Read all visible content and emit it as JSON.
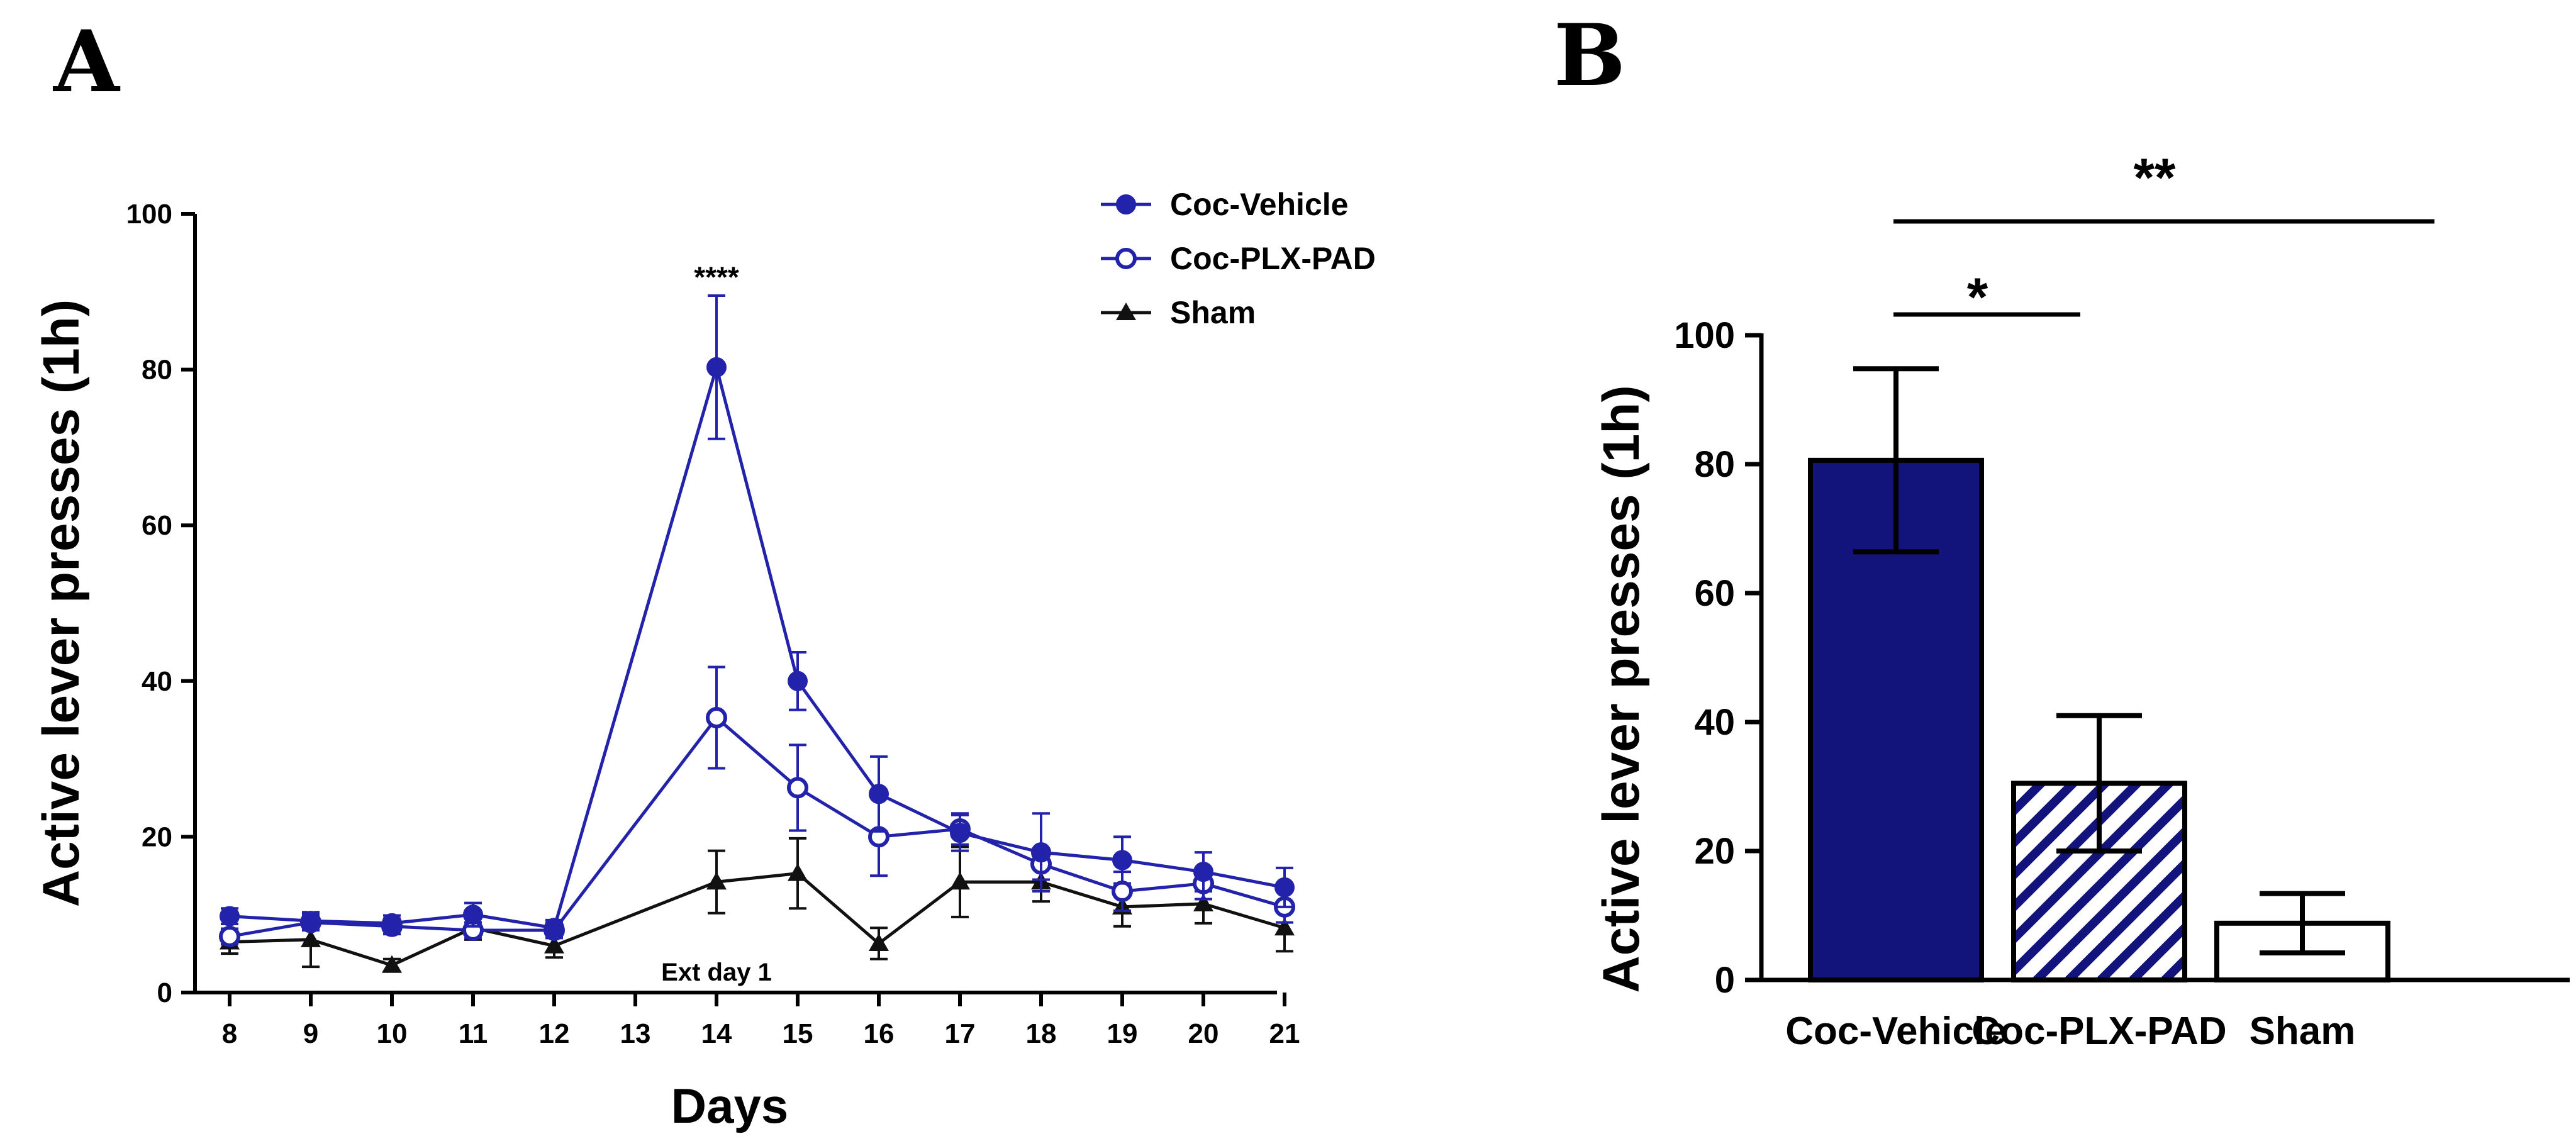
{
  "panels": {
    "a_label": "A",
    "b_label": "B"
  },
  "chart_data": [
    {
      "type": "line",
      "panel": "A",
      "title": "",
      "xlabel": "Days",
      "ylabel": "Active lever presses (1h)",
      "x": [
        8,
        9,
        10,
        11,
        12,
        13,
        14,
        15,
        16,
        17,
        18,
        19,
        20,
        21
      ],
      "x_tick_labels": [
        "8",
        "9",
        "10",
        "11",
        "12",
        "13",
        "14",
        "15",
        "16",
        "17",
        "18",
        "19",
        "20",
        "21"
      ],
      "ylim": [
        0,
        100
      ],
      "y_ticks": [
        0,
        20,
        40,
        60,
        80,
        100
      ],
      "y_tick_labels": [
        "0",
        "20",
        "40",
        "60",
        "80",
        "100"
      ],
      "grid": false,
      "legend": "top-right",
      "series": [
        {
          "name": "Coc-Vehicle",
          "marker": "filled-circle",
          "color": "#2222AA",
          "x": [
            8,
            9,
            10,
            11,
            12,
            14,
            15,
            16,
            17,
            18,
            19,
            20,
            21
          ],
          "y": [
            9.8,
            9.2,
            8.9,
            10.0,
            8.3,
            80.3,
            40.0,
            25.5,
            20.5,
            18.0,
            17.0,
            15.5,
            13.5
          ],
          "err": [
            1.0,
            1.0,
            1.0,
            1.5,
            1.0,
            9.2,
            3.7,
            4.8,
            2.3,
            5.0,
            3.0,
            2.5,
            2.5
          ]
        },
        {
          "name": "Coc-PLX-PAD",
          "marker": "open-circle",
          "color": "#2222AA",
          "x": [
            8,
            9,
            10,
            11,
            12,
            14,
            15,
            16,
            17,
            18,
            19,
            20,
            21
          ],
          "y": [
            7.2,
            9.0,
            8.5,
            8.0,
            8.0,
            35.3,
            26.3,
            20.0,
            21.0,
            16.5,
            13.0,
            14.0,
            11.0
          ],
          "err": [
            1.0,
            1.0,
            1.0,
            1.0,
            1.0,
            6.5,
            5.5,
            5.0,
            2.0,
            2.0,
            2.5,
            2.0,
            2.0
          ]
        },
        {
          "name": "Sham",
          "marker": "filled-triangle",
          "color": "#111111",
          "x": [
            8,
            9,
            10,
            11,
            12,
            14,
            15,
            16,
            17,
            18,
            19,
            20,
            21
          ],
          "y": [
            6.5,
            6.8,
            3.5,
            8.3,
            6.0,
            14.2,
            15.3,
            6.3,
            14.2,
            14.2,
            11.0,
            11.4,
            8.3
          ],
          "err": [
            1.5,
            3.5,
            0.8,
            1.5,
            1.5,
            4.0,
            4.5,
            2.0,
            4.5,
            2.5,
            2.5,
            2.5,
            3.0
          ]
        }
      ],
      "annotations": [
        {
          "text": "****",
          "x": 14,
          "y": 93
        },
        {
          "text": "Ext day 1",
          "x": 14,
          "y": 2.5
        }
      ]
    },
    {
      "type": "bar",
      "panel": "B",
      "title": "",
      "xlabel": "",
      "ylabel": "Active lever presses (1h)",
      "categories": [
        "Coc-Vehicle",
        "Coc-PLX-PAD",
        "Sham"
      ],
      "values": [
        80.6,
        30.5,
        8.8
      ],
      "errors": [
        14.2,
        10.5,
        4.6
      ],
      "fills": [
        "solid",
        "diagonal-stripes",
        "none"
      ],
      "colors": [
        "#13137C",
        "#13137C",
        "#000000"
      ],
      "ylim": [
        0,
        100
      ],
      "y_ticks": [
        0,
        20,
        40,
        60,
        80,
        100
      ],
      "y_tick_labels": [
        "0",
        "20",
        "40",
        "60",
        "80",
        "100"
      ],
      "grid": false,
      "significance": [
        {
          "from": "Coc-Vehicle",
          "to": "Sham",
          "label": "**"
        },
        {
          "from": "Coc-Vehicle",
          "to": "Coc-PLX-PAD",
          "label": "*"
        }
      ]
    }
  ]
}
